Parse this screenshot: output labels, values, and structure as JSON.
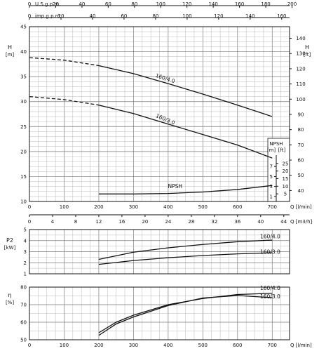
{
  "chart_data": [
    {
      "id": "head",
      "type": "line",
      "x_axes": {
        "bottom": {
          "label": "Q [l/min]",
          "range": [
            0,
            750
          ],
          "ticks": [
            0,
            100,
            200,
            300,
            400,
            500,
            600,
            700
          ]
        },
        "top_usgpm": {
          "label": "U.S.g.p.m.",
          "ticks": [
            0,
            20,
            40,
            60,
            80,
            100,
            120,
            140,
            160,
            180,
            200
          ]
        },
        "top_impgpm": {
          "label": "imp.g.p.m.",
          "ticks": [
            0,
            20,
            40,
            60,
            80,
            100,
            120,
            140,
            160
          ]
        }
      },
      "ylabel_left": "H [m]",
      "ylim": [
        10,
        45
      ],
      "yticks_left": [
        10,
        15,
        20,
        25,
        30,
        35,
        40,
        45
      ],
      "ylabel_right": "H [ft]",
      "yticks_right": [
        40,
        50,
        60,
        70,
        80,
        90,
        100,
        110,
        120,
        130,
        140
      ],
      "grid": true,
      "series": [
        {
          "name": "160/4.0",
          "x": [
            0,
            100,
            200,
            300,
            400,
            500,
            600,
            700
          ],
          "y": [
            38.8,
            38.3,
            37.2,
            35.6,
            33.6,
            31.5,
            29.3,
            27.0
          ],
          "dashed_below": 200
        },
        {
          "name": "160/3.0",
          "x": [
            0,
            100,
            200,
            300,
            400,
            500,
            600,
            700
          ],
          "y": [
            31.0,
            30.4,
            29.3,
            27.6,
            25.5,
            23.4,
            21.3,
            18.7
          ],
          "dashed_below": 200
        },
        {
          "name": "NPSH",
          "x": [
            200,
            300,
            400,
            500,
            600,
            700
          ],
          "y": [
            11.5,
            11.5,
            11.6,
            11.9,
            12.4,
            13.2
          ]
        }
      ],
      "npsh_scale": {
        "title": "NPSH",
        "unit_m": "[m]",
        "unit_ft": "[ft]",
        "m_ticks": [
          1,
          3,
          5,
          7
        ],
        "ft_ticks": [
          5,
          10,
          15,
          20,
          25
        ]
      }
    },
    {
      "id": "power",
      "type": "line",
      "xlabel": "Q [m3/h]",
      "xticks": [
        0,
        4,
        8,
        12,
        16,
        20,
        24,
        28,
        32,
        36,
        40,
        44
      ],
      "ylabel": "P2 [kW]",
      "ylim": [
        1,
        5
      ],
      "yticks": [
        1,
        2,
        3,
        4,
        5
      ],
      "grid": true,
      "series": [
        {
          "name": "160/4.0",
          "x": [
            200,
            300,
            400,
            500,
            600,
            700
          ],
          "y": [
            2.3,
            2.95,
            3.35,
            3.65,
            3.9,
            4.05
          ]
        },
        {
          "name": "160/3.0",
          "x": [
            200,
            300,
            400,
            500,
            600,
            700
          ],
          "y": [
            1.85,
            2.2,
            2.45,
            2.65,
            2.8,
            2.9
          ]
        }
      ]
    },
    {
      "id": "efficiency",
      "type": "line",
      "xlabel": "Q [l/min]",
      "xticks": [
        0,
        100,
        200,
        300,
        400,
        500,
        600,
        700
      ],
      "ylabel": "η [%]",
      "ylim": [
        50,
        80
      ],
      "yticks": [
        50,
        60,
        70,
        80
      ],
      "grid": true,
      "series": [
        {
          "name": "160/4.0",
          "x": [
            200,
            250,
            300,
            400,
            500,
            600,
            700
          ],
          "y": [
            54,
            60,
            64,
            70,
            73.5,
            75.8,
            76.5
          ]
        },
        {
          "name": "160/3.0",
          "x": [
            200,
            250,
            300,
            400,
            500,
            600,
            700
          ],
          "y": [
            52.5,
            59,
            63,
            69.5,
            73.8,
            75.2,
            74.0
          ]
        }
      ]
    }
  ]
}
